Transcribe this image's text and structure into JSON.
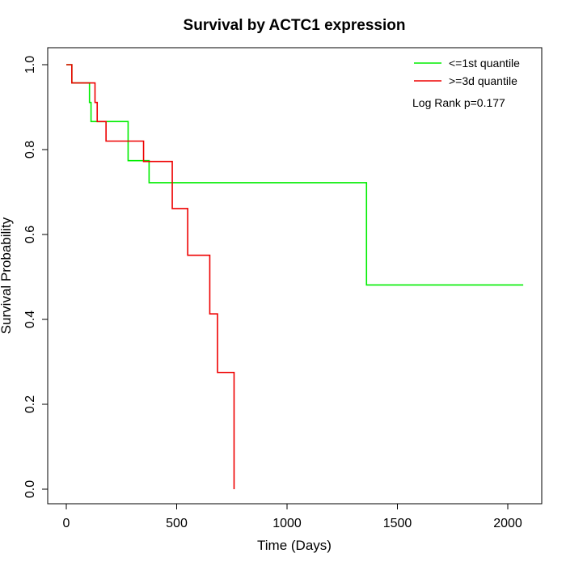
{
  "chart_data": {
    "type": "line",
    "subtype": "step (Kaplan-Meier survival curve)",
    "title": "Survival by ACTC1 expression",
    "xlabel": "Time (Days)",
    "ylabel": "Survival Probability",
    "xlim": [
      -50,
      2090
    ],
    "ylim": [
      -0.04,
      1.04
    ],
    "x_ticks": [
      0,
      500,
      1000,
      1500,
      2000
    ],
    "y_ticks": [
      0.0,
      0.2,
      0.4,
      0.6,
      0.8,
      1.0
    ],
    "x_tick_labels": [
      "0",
      "500",
      "1000",
      "1500",
      "2000"
    ],
    "y_tick_labels": [
      "0.0",
      "0.2",
      "0.4",
      "0.6",
      "0.8",
      "1.0"
    ],
    "grid": false,
    "legend_position": "top-right",
    "annotation": "Log Rank p=0.177",
    "series": [
      {
        "name": "<=1st quantile",
        "color": "#00ee00",
        "points": [
          [
            0,
            1.0
          ],
          [
            25,
            1.0
          ],
          [
            25,
            0.957
          ],
          [
            105,
            0.957
          ],
          [
            105,
            0.911
          ],
          [
            112,
            0.911
          ],
          [
            112,
            0.866
          ],
          [
            280,
            0.866
          ],
          [
            280,
            0.774
          ],
          [
            375,
            0.774
          ],
          [
            375,
            0.722
          ],
          [
            1360,
            0.722
          ],
          [
            1360,
            0.481
          ],
          [
            2070,
            0.481
          ]
        ]
      },
      {
        "name": ">=3d quantile",
        "color": "#ee0000",
        "points": [
          [
            0,
            1.0
          ],
          [
            25,
            1.0
          ],
          [
            25,
            0.957
          ],
          [
            130,
            0.957
          ],
          [
            130,
            0.911
          ],
          [
            140,
            0.911
          ],
          [
            140,
            0.866
          ],
          [
            180,
            0.866
          ],
          [
            180,
            0.82
          ],
          [
            350,
            0.82
          ],
          [
            350,
            0.772
          ],
          [
            480,
            0.772
          ],
          [
            480,
            0.661
          ],
          [
            550,
            0.661
          ],
          [
            550,
            0.551
          ],
          [
            650,
            0.551
          ],
          [
            650,
            0.413
          ],
          [
            685,
            0.413
          ],
          [
            685,
            0.275
          ],
          [
            760,
            0.275
          ],
          [
            760,
            0.0
          ]
        ]
      }
    ]
  }
}
